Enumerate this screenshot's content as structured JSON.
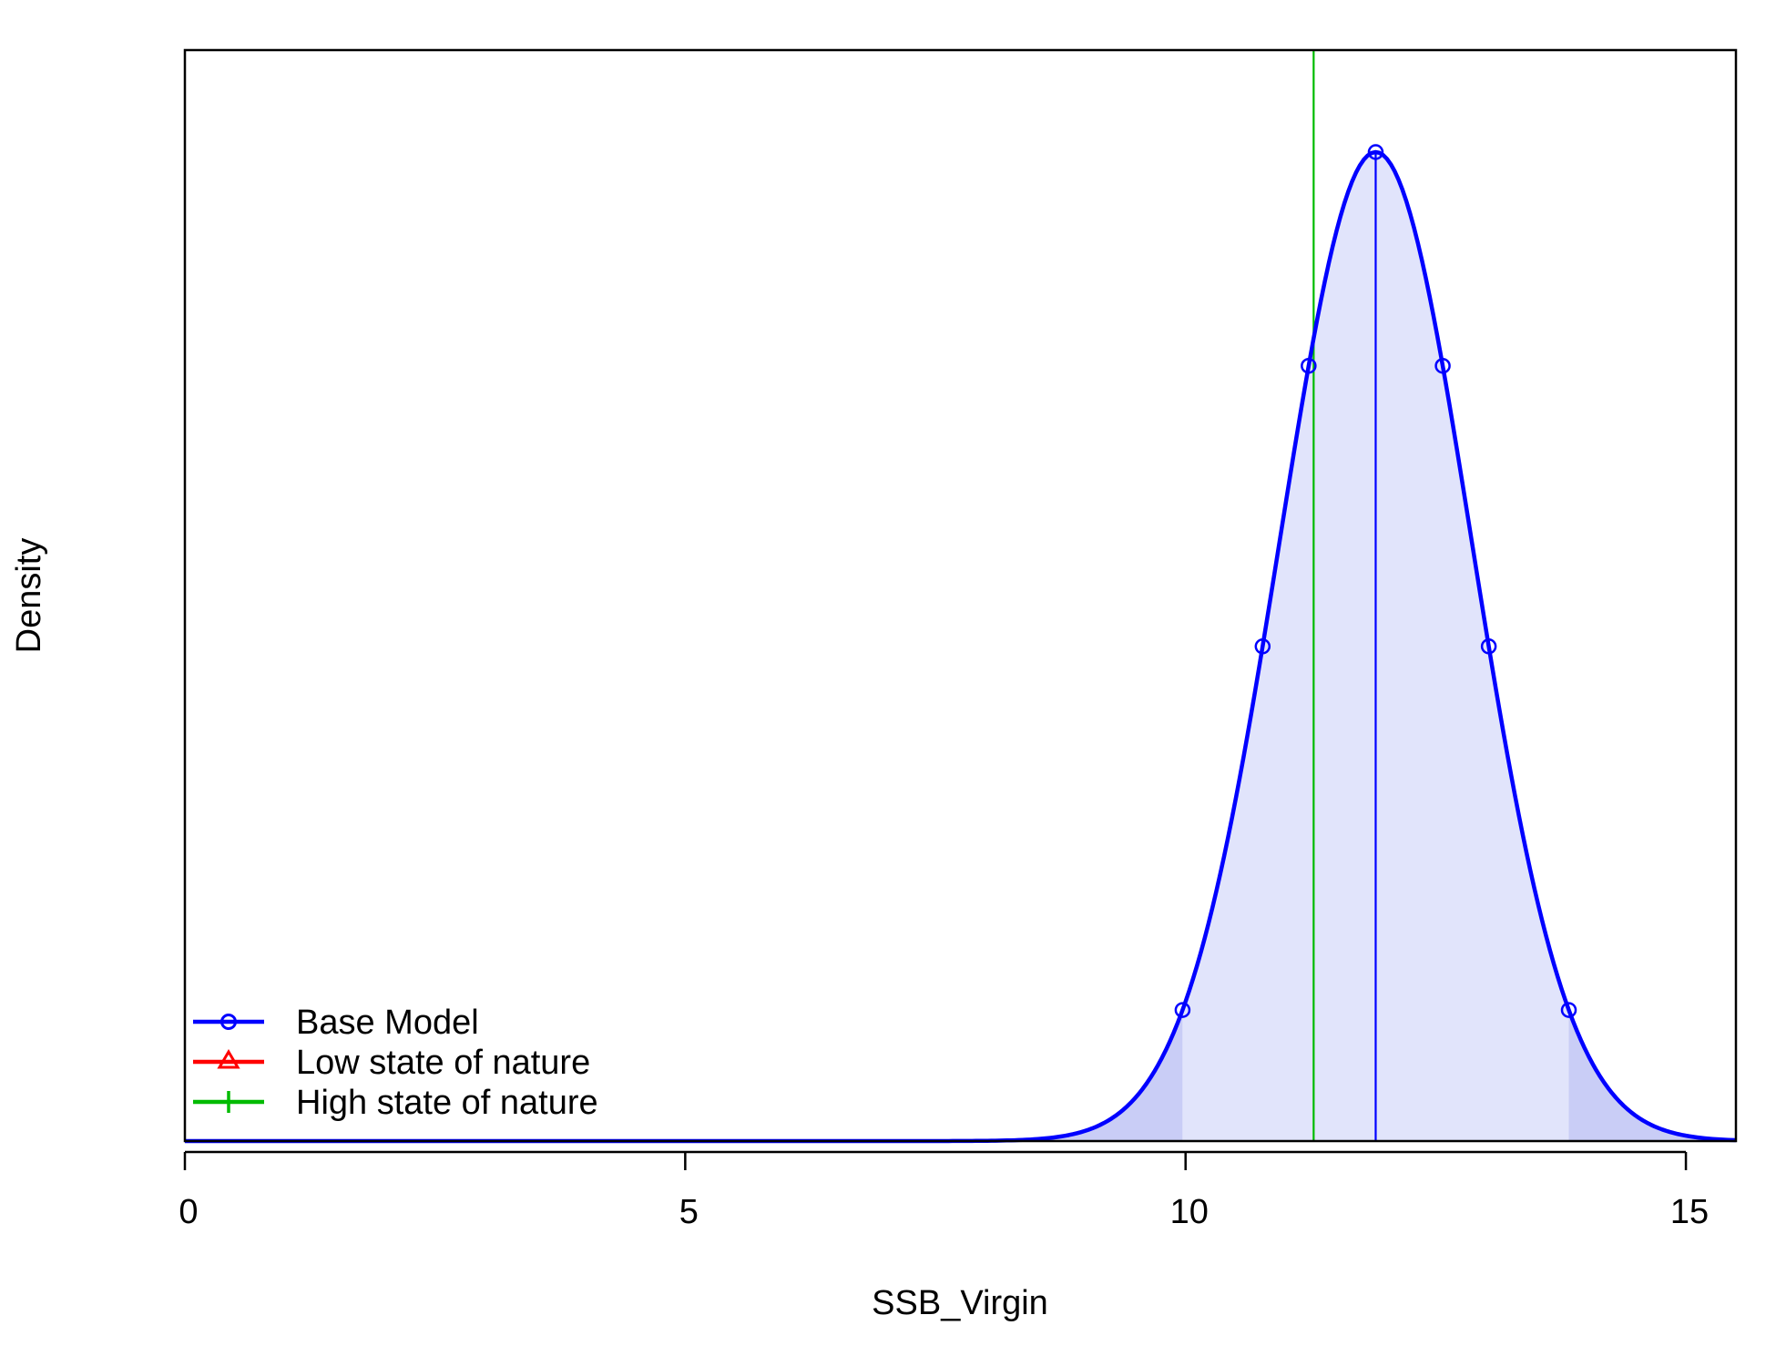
{
  "chart_data": {
    "type": "area",
    "xlabel": "SSB_Virgin",
    "ylabel": "Density",
    "xlim": [
      0,
      15.5
    ],
    "ylim": [
      0,
      1.1
    ],
    "x_ticks": [
      0,
      5,
      10,
      15
    ],
    "x_tick_labels": [
      "0",
      "5",
      "10",
      "15"
    ],
    "y_ticks_shown": false,
    "grid": false,
    "legend_position": "bottom-left",
    "distribution": {
      "series_name": "Base Model",
      "shape": "normal",
      "mean": 11.9,
      "sd": 0.96,
      "peak_density_relative": 1.0,
      "interval": [
        9.97,
        13.83
      ],
      "marker_points_x": [
        9.97,
        10.77,
        11.23,
        11.9,
        12.57,
        13.03,
        13.83
      ]
    },
    "vertical_lines": [
      {
        "name": "Base Model",
        "x": 11.9,
        "color": "#0000ff"
      },
      {
        "name": "High state of nature",
        "x": 11.28,
        "color": "#00bb00"
      }
    ],
    "series": [
      {
        "name": "Base Model",
        "color": "#0000ff",
        "marker": "circle"
      },
      {
        "name": "Low state of nature",
        "color": "#ff0000",
        "marker": "triangle"
      },
      {
        "name": "High state of nature",
        "color": "#00bb00",
        "marker": "plus"
      }
    ],
    "fill_colors": {
      "interval": "#e1e4fb",
      "tails": "#c9cdf6"
    }
  }
}
